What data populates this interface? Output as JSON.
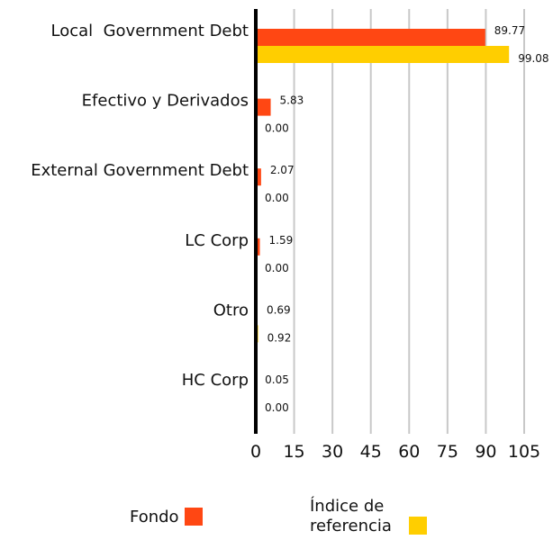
{
  "chart_data": {
    "type": "bar",
    "orientation": "horizontal",
    "categories": [
      "Local  Government Debt",
      "Efectivo y Derivados",
      "External Government Debt",
      "LC Corp",
      "Otro",
      "HC Corp"
    ],
    "series": [
      {
        "name": "Fondo",
        "color": "#FF4713",
        "values": [
          89.77,
          5.83,
          2.07,
          1.59,
          0.69,
          0.05
        ],
        "value_labels": [
          "89.77",
          "5.83",
          "2.07",
          "1.59",
          "0.69",
          "0.05"
        ]
      },
      {
        "name": "Índice de referencia",
        "color": "#FFCE00",
        "values": [
          99.08,
          0.0,
          0.0,
          0.0,
          0.92,
          0.0
        ],
        "value_labels": [
          "99.08",
          "0.00",
          "0.00",
          "0.00",
          "0.92",
          "0.00"
        ]
      }
    ],
    "xlim": [
      0,
      105
    ],
    "xticks": [
      "0",
      "15",
      "30",
      "45",
      "60",
      "75",
      "90",
      "105"
    ],
    "grid": true,
    "legend_position": "bottom"
  },
  "legend": {
    "fondo_label": "Fondo",
    "indice_line1": "Índice de",
    "indice_line2": "referencia"
  }
}
